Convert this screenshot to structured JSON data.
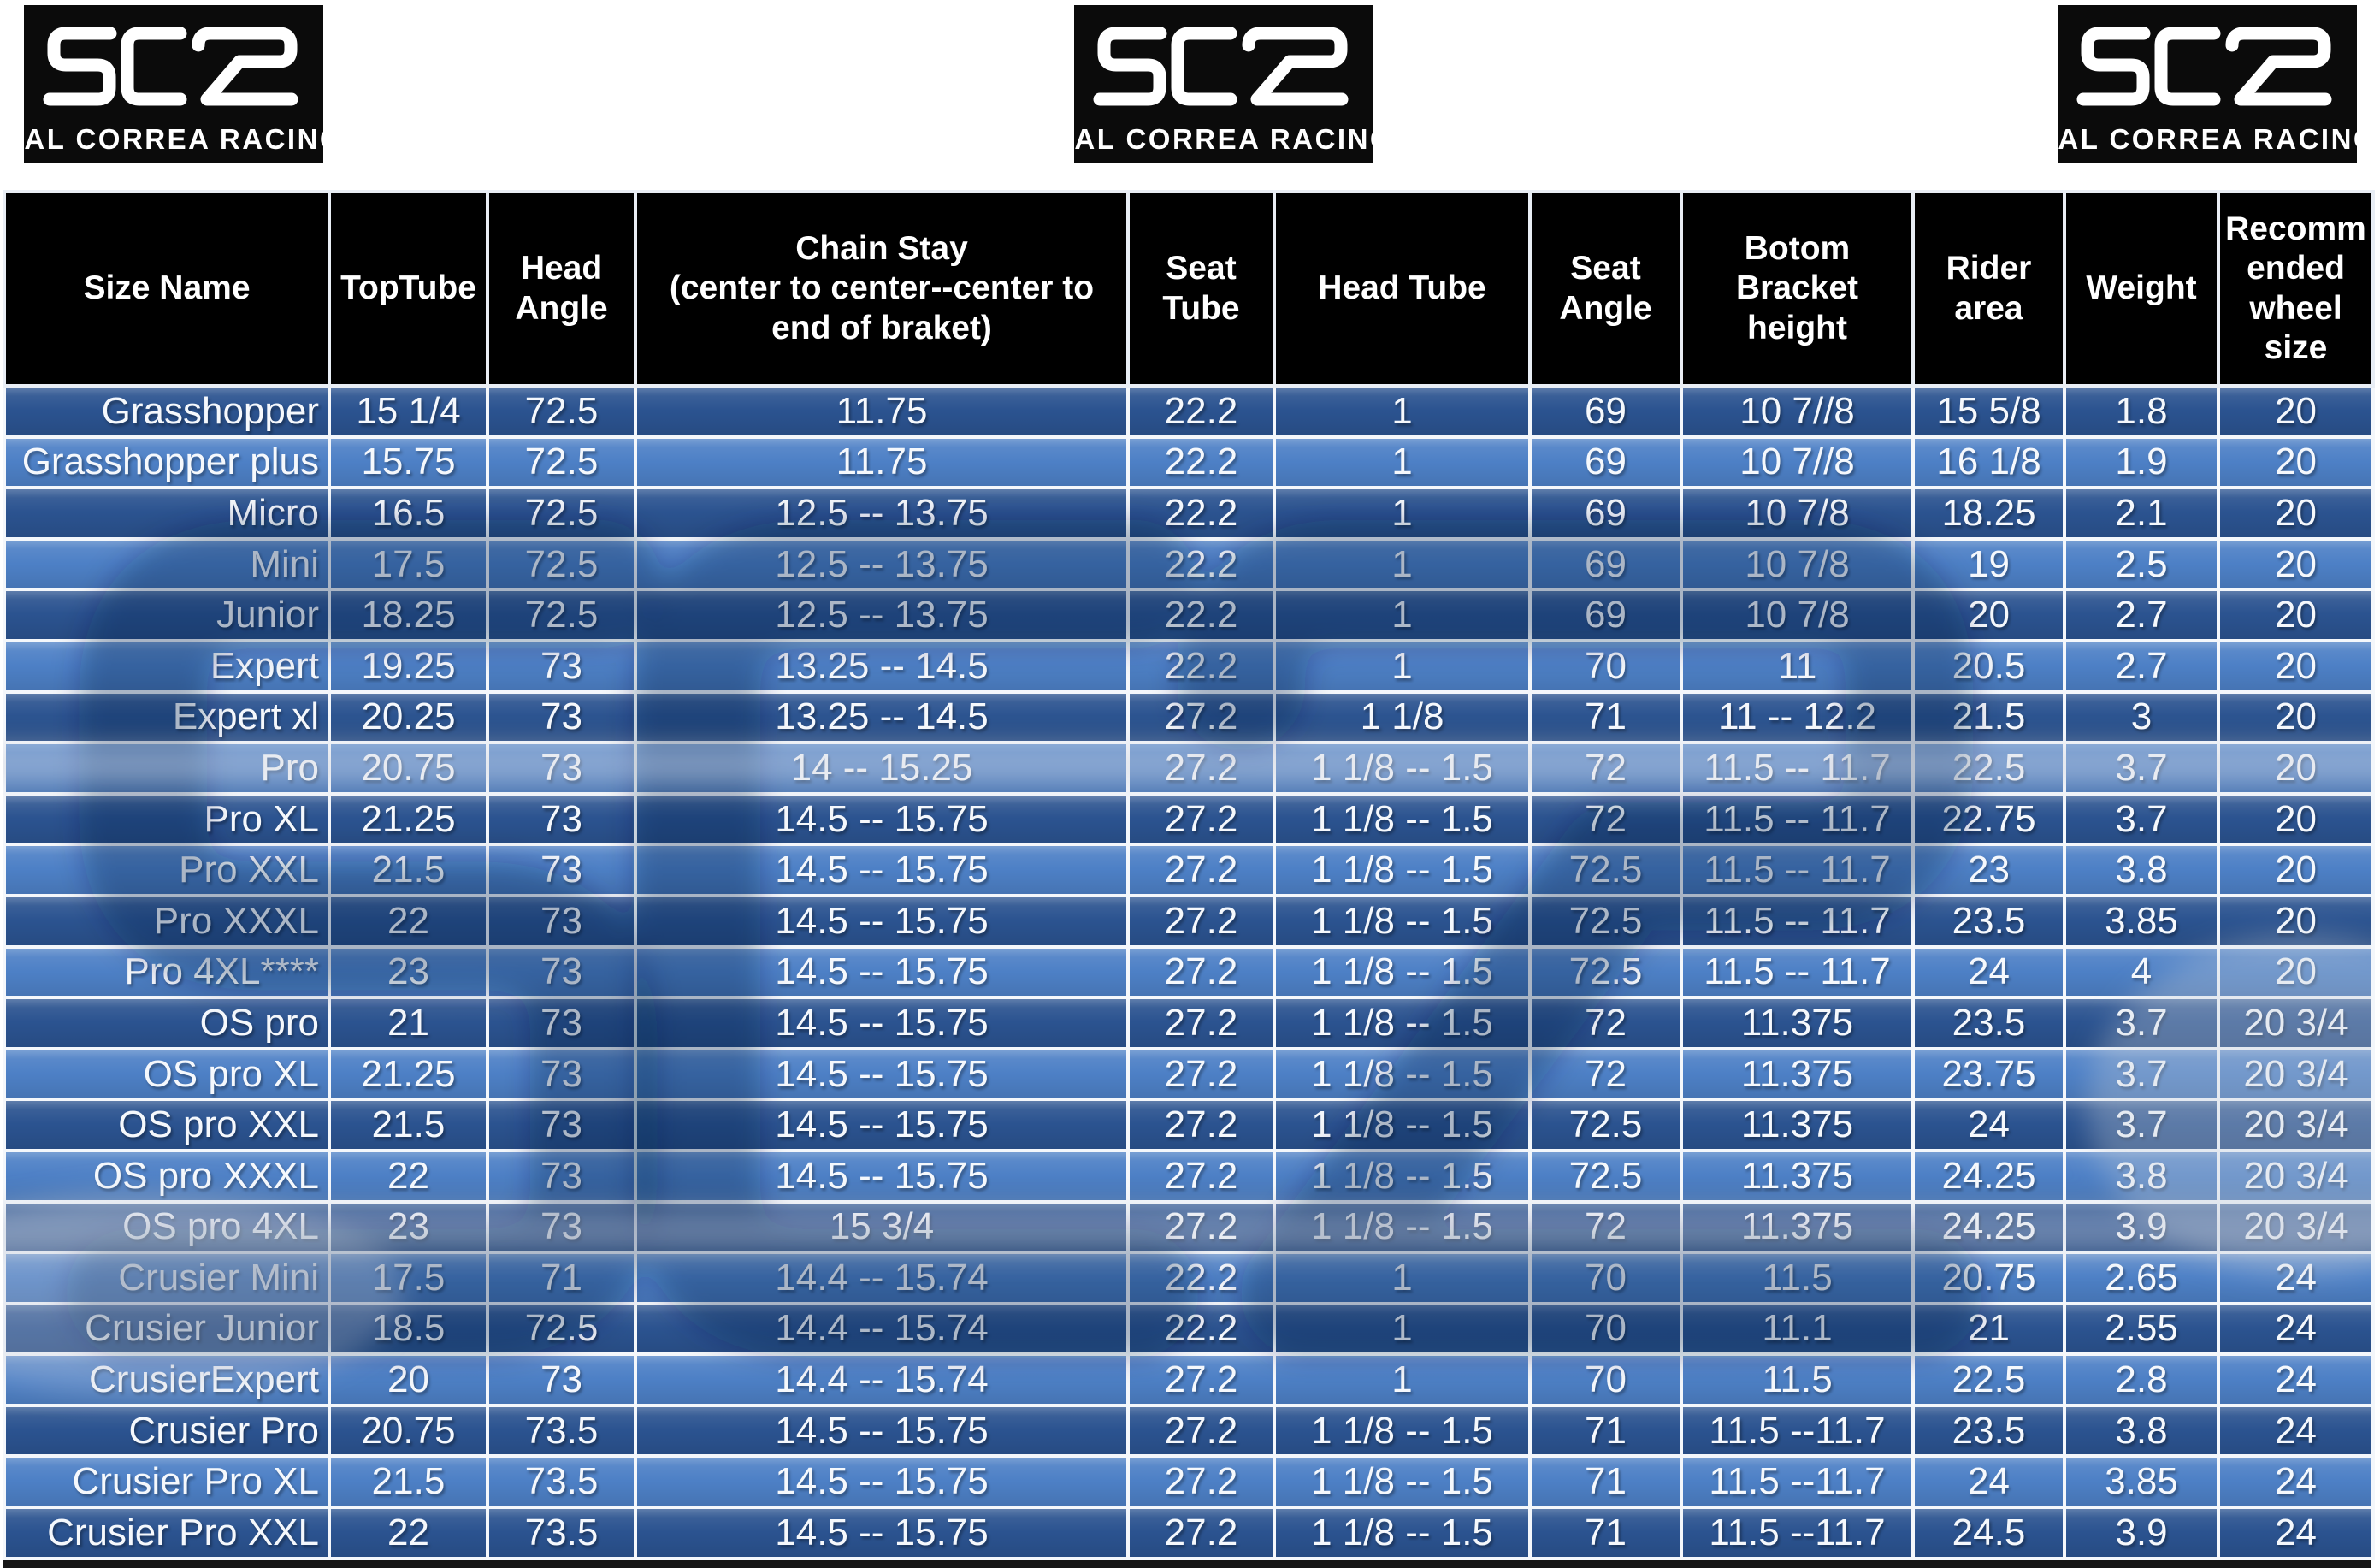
{
  "brand": {
    "logo_mark": "SCR",
    "logo_subtext": "SAL CORREA RACING"
  },
  "table": {
    "columns": [
      "Size Name",
      "TopTube",
      "Head\nAngle",
      "Chain Stay\n(center to center--center to\nend of braket)",
      "Seat\nTube",
      "Head Tube",
      "Seat\nAngle",
      "Botom\nBracket\nheight",
      "Rider\narea",
      "Weight",
      "Recomm\nended\nwheel\nsize"
    ],
    "rows": [
      [
        "Grasshopper",
        "15 1/4",
        "72.5",
        "11.75",
        "22.2",
        "1",
        "69",
        "10 7//8",
        "15 5/8",
        "1.8",
        "20"
      ],
      [
        "Grasshopper plus",
        "15.75",
        "72.5",
        "11.75",
        "22.2",
        "1",
        "69",
        "10 7//8",
        "16 1/8",
        "1.9",
        "20"
      ],
      [
        "Micro",
        "16.5",
        "72.5",
        "12.5 -- 13.75",
        "22.2",
        "1",
        "69",
        "10 7/8",
        "18.25",
        "2.1",
        "20"
      ],
      [
        "Mini",
        "17.5",
        "72.5",
        "12.5 -- 13.75",
        "22.2",
        "1",
        "69",
        "10 7/8",
        "19",
        "2.5",
        "20"
      ],
      [
        "Junior",
        "18.25",
        "72.5",
        "12.5 -- 13.75",
        "22.2",
        "1",
        "69",
        "10 7/8",
        "20",
        "2.7",
        "20"
      ],
      [
        "Expert",
        "19.25",
        "73",
        "13.25 -- 14.5",
        "22.2",
        "1",
        "70",
        "11",
        "20.5",
        "2.7",
        "20"
      ],
      [
        "Expert xl",
        "20.25",
        "73",
        "13.25 -- 14.5",
        "27.2",
        "1 1/8",
        "71",
        "11 -- 12.2",
        "21.5",
        "3",
        "20"
      ],
      [
        "Pro",
        "20.75",
        "73",
        "14 -- 15.25",
        "27.2",
        "1 1/8 -- 1.5",
        "72",
        "11.5 -- 11.7",
        "22.5",
        "3.7",
        "20"
      ],
      [
        "Pro XL",
        "21.25",
        "73",
        "14.5 -- 15.75",
        "27.2",
        "1 1/8 -- 1.5",
        "72",
        "11.5 -- 11.7",
        "22.75",
        "3.7",
        "20"
      ],
      [
        "Pro XXL",
        "21.5",
        "73",
        "14.5 -- 15.75",
        "27.2",
        "1 1/8 -- 1.5",
        "72.5",
        "11.5 -- 11.7",
        "23",
        "3.8",
        "20"
      ],
      [
        "Pro XXXL",
        "22",
        "73",
        "14.5 -- 15.75",
        "27.2",
        "1 1/8 -- 1.5",
        "72.5",
        "11.5 -- 11.7",
        "23.5",
        "3.85",
        "20"
      ],
      [
        "Pro 4XL****",
        "23",
        "73",
        "14.5 -- 15.75",
        "27.2",
        "1 1/8 -- 1.5",
        "72.5",
        "11.5 -- 11.7",
        "24",
        "4",
        "20"
      ],
      [
        "OS pro",
        "21",
        "73",
        "14.5 -- 15.75",
        "27.2",
        "1 1/8 -- 1.5",
        "72",
        "11.375",
        "23.5",
        "3.7",
        "20 3/4"
      ],
      [
        "OS pro XL",
        "21.25",
        "73",
        "14.5 -- 15.75",
        "27.2",
        "1 1/8 -- 1.5",
        "72",
        "11.375",
        "23.75",
        "3.7",
        "20 3/4"
      ],
      [
        "OS pro XXL",
        "21.5",
        "73",
        "14.5 -- 15.75",
        "27.2",
        "1 1/8 -- 1.5",
        "72.5",
        "11.375",
        "24",
        "3.7",
        "20 3/4"
      ],
      [
        "OS pro XXXL",
        "22",
        "73",
        "14.5 -- 15.75",
        "27.2",
        "1 1/8 -- 1.5",
        "72.5",
        "11.375",
        "24.25",
        "3.8",
        "20 3/4"
      ],
      [
        "OS pro 4XL",
        "23",
        "73",
        "15 3/4",
        "27.2",
        "1 1/8 -- 1.5",
        "72",
        "11.375",
        "24.25",
        "3.9",
        "20 3/4"
      ],
      [
        "Crusier Mini",
        "17.5",
        "71",
        "14.4 -- 15.74",
        "22.2",
        "1",
        "70",
        "11.5",
        "20.75",
        "2.65",
        "24"
      ],
      [
        "Crusier Junior",
        "18.5",
        "72.5",
        "14.4 -- 15.74",
        "22.2",
        "1",
        "70",
        "11.1",
        "21",
        "2.55",
        "24"
      ],
      [
        "CrusierExpert",
        "20",
        "73",
        "14.4 -- 15.74",
        "27.2",
        "1",
        "70",
        "11.5",
        "22.5",
        "2.8",
        "24"
      ],
      [
        "Crusier Pro",
        "20.75",
        "73.5",
        "14.5 -- 15.75",
        "27.2",
        "1 1/8 -- 1.5",
        "71",
        "11.5 --11.7",
        "23.5",
        "3.8",
        "24"
      ],
      [
        "Crusier Pro XL",
        "21.5",
        "73.5",
        "14.5 -- 15.75",
        "27.2",
        "1 1/8 -- 1.5",
        "71",
        "11.5 --11.7",
        "24",
        "3.85",
        "24"
      ],
      [
        "Crusier Pro XXL",
        "22",
        "73.5",
        "14.5 -- 15.75",
        "27.2",
        "1 1/8 -- 1.5",
        "71",
        "11.5 --11.7",
        "24.5",
        "3.9",
        "24"
      ]
    ]
  },
  "colors": {
    "header_bg": "#000000",
    "row_dark": "#2b5390",
    "row_light": "#4d80c6",
    "grid": "#f4f7fb",
    "text": "#ffffff",
    "page_bg": "#ffffff"
  }
}
